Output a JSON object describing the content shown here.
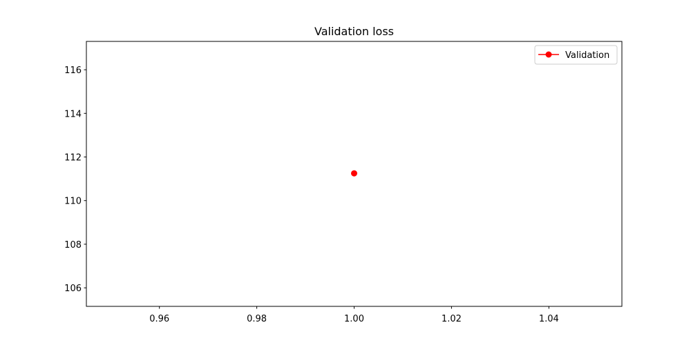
{
  "chart_data": {
    "type": "line",
    "title": "Validation loss",
    "xlabel": "",
    "ylabel": "",
    "xlim": [
      0.945,
      1.055
    ],
    "ylim": [
      105.15,
      117.3
    ],
    "xticks": [
      0.96,
      0.98,
      1.0,
      1.02,
      1.04
    ],
    "xtick_labels": [
      "0.96",
      "0.98",
      "1.00",
      "1.02",
      "1.04"
    ],
    "yticks": [
      106,
      108,
      110,
      112,
      114,
      116
    ],
    "ytick_labels": [
      "106",
      "108",
      "110",
      "112",
      "114",
      "116"
    ],
    "grid": false,
    "legend_position": "top-right",
    "series": [
      {
        "name": "Validation",
        "color": "#ff0000",
        "marker": "circle",
        "x": [
          1.0
        ],
        "y": [
          111.25
        ]
      }
    ]
  }
}
